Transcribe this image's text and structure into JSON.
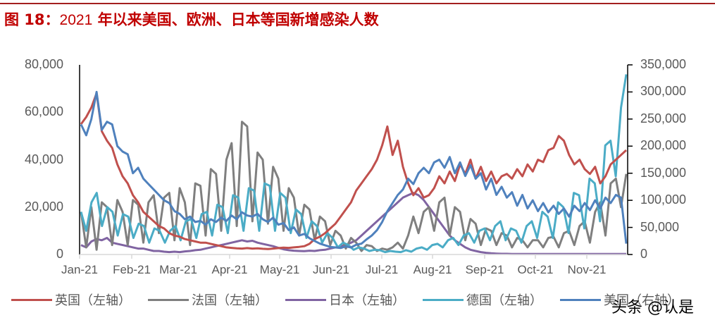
{
  "header": {
    "figure_no": "图 18：",
    "title_num": "2021",
    "title_text": " 年以来美国、欧洲、日本等国新增感染人数"
  },
  "watermark": "头条 @认是",
  "colors": {
    "uk": "#c0504d",
    "france": "#7f7f7f",
    "japan": "#8064a2",
    "germany": "#4bacc6",
    "us": "#4f81bd",
    "title": "#c00000",
    "axis_text": "#595959"
  },
  "chart_data": {
    "type": "line",
    "title": "图 18：2021 年以来美国、欧洲、日本等国新增感染人数",
    "xlabel": "",
    "ylabel_left": "",
    "ylabel_right": "",
    "x_ticks": [
      "Jan-21",
      "Feb-21",
      "Mar-21",
      "Apr-21",
      "May-21",
      "Jun-21",
      "Jul-21",
      "Aug-21",
      "Sep-21",
      "Oct-21",
      "Nov-21"
    ],
    "y_left_ticks": [
      "0",
      "20,000",
      "40,000",
      "60,000",
      "80,000"
    ],
    "y_right_ticks": [
      "0",
      "50,000",
      "100,000",
      "150,000",
      "200,000",
      "250,000",
      "300,000",
      "350,000"
    ],
    "ylim_left": [
      0,
      80000
    ],
    "ylim_right": [
      0,
      350000
    ],
    "grid": false,
    "legend_position": "bottom",
    "x_step_days": 3.4,
    "series": [
      {
        "key": "uk",
        "name": "英国（左轴）",
        "axis": "left",
        "values": [
          55000,
          58000,
          62000,
          68000,
          52000,
          48000,
          45000,
          38000,
          33000,
          30000,
          25000,
          22000,
          18000,
          16000,
          14000,
          12000,
          11000,
          9000,
          8000,
          7500,
          6500,
          6000,
          5500,
          5000,
          5000,
          4500,
          4000,
          3500,
          3000,
          2800,
          2600,
          2500,
          2700,
          2500,
          2600,
          2400,
          2300,
          2500,
          2700,
          2900,
          2800,
          3000,
          3200,
          3500,
          4500,
          6500,
          7500,
          9000,
          11000,
          13000,
          16000,
          19000,
          22000,
          27000,
          30000,
          33000,
          36000,
          40000,
          46000,
          54000,
          42000,
          48000,
          37000,
          30000,
          25000,
          28000,
          24000,
          25000,
          28000,
          33000,
          30000,
          35000,
          31000,
          38000,
          34000,
          40000,
          32000,
          37000,
          31000,
          35000,
          30000,
          33000,
          34000,
          32000,
          36000,
          33000,
          38000,
          35000,
          40000,
          39000,
          44000,
          45000,
          50000,
          48000,
          42000,
          38000,
          40000,
          36000,
          34000,
          37000,
          30000,
          33000,
          38000,
          40000,
          42000,
          44000
        ]
      },
      {
        "key": "france",
        "name": "法国（左轴）",
        "axis": "left",
        "values": [
          18000,
          3000,
          20000,
          2000,
          22000,
          20000,
          4000,
          23000,
          18000,
          4000,
          23000,
          21000,
          5000,
          22000,
          25000,
          9000,
          24000,
          26000,
          6000,
          28000,
          22000,
          4000,
          30000,
          29000,
          8000,
          36000,
          34000,
          10000,
          40000,
          47000,
          12000,
          56000,
          54000,
          14000,
          43000,
          40000,
          13000,
          37000,
          32000,
          10000,
          28000,
          24000,
          8000,
          21000,
          19000,
          6000,
          16000,
          14000,
          4000,
          10000,
          8000,
          2500,
          7000,
          5000,
          1500,
          4000,
          3500,
          1500,
          2500,
          2000,
          3000,
          5000,
          2500,
          8000,
          16000,
          9000,
          18000,
          20000,
          10000,
          22000,
          24000,
          8000,
          20000,
          18000,
          6000,
          15000,
          13000,
          4000,
          11000,
          10000,
          4000,
          9000,
          8000,
          3000,
          7000,
          6000,
          3000,
          6000,
          6000,
          3000,
          7000,
          7500,
          3000,
          9000,
          10000,
          4000,
          12000,
          14000,
          5000,
          18000,
          22000,
          8000,
          30000,
          32000,
          20000,
          34000
        ]
      },
      {
        "key": "japan",
        "name": "日本（左轴）",
        "axis": "left",
        "values": [
          4000,
          3000,
          5500,
          6500,
          6000,
          7000,
          5000,
          4500,
          4000,
          3500,
          3000,
          2500,
          2500,
          2000,
          1500,
          1500,
          1200,
          1000,
          1200,
          1000,
          1300,
          1500,
          1800,
          2000,
          2500,
          3000,
          3500,
          4000,
          4500,
          5000,
          5500,
          6000,
          5500,
          5800,
          5000,
          4500,
          4000,
          3500,
          2800,
          2200,
          1800,
          1600,
          1500,
          1400,
          1600,
          1500,
          1800,
          2000,
          2500,
          3000,
          3500,
          4000,
          5000,
          6000,
          8000,
          10000,
          12000,
          14000,
          16000,
          18000,
          20000,
          22000,
          24000,
          25000,
          26000,
          25000,
          23000,
          20000,
          17000,
          14000,
          11000,
          8000,
          6000,
          4500,
          3000,
          2000,
          1500,
          1000,
          700,
          500,
          400,
          300,
          300,
          250,
          250,
          200,
          200,
          200,
          200,
          200,
          200,
          200,
          200,
          200,
          200,
          200,
          200,
          200,
          200,
          200,
          200,
          200,
          200,
          200,
          200,
          200
        ]
      },
      {
        "key": "germany",
        "name": "德国（左轴）",
        "axis": "left",
        "values": [
          18000,
          10000,
          22000,
          26000,
          12000,
          20000,
          18000,
          8000,
          17000,
          16000,
          7000,
          13000,
          12000,
          5000,
          11000,
          10000,
          5000,
          10000,
          12000,
          6000,
          14000,
          15000,
          7000,
          17000,
          18000,
          8000,
          21000,
          20000,
          9000,
          25000,
          24000,
          10000,
          28000,
          27000,
          10000,
          30000,
          29000,
          10000,
          26000,
          24000,
          9000,
          19000,
          17000,
          7000,
          14000,
          12000,
          5000,
          9000,
          7000,
          3000,
          5000,
          4000,
          2000,
          3000,
          2500,
          1500,
          2000,
          1800,
          1000,
          1500,
          1200,
          1000,
          1800,
          1200,
          2500,
          3000,
          2000,
          4000,
          4500,
          3000,
          6000,
          7000,
          4000,
          8000,
          9000,
          5000,
          10000,
          11000,
          6000,
          12000,
          14000,
          6000,
          11000,
          10000,
          5000,
          12000,
          14000,
          7000,
          18000,
          16000,
          7000,
          22000,
          20000,
          9000,
          26000,
          25000,
          11000,
          32000,
          30000,
          14000,
          46000,
          48000,
          33000,
          62000,
          76000
        ]
      },
      {
        "key": "us",
        "name": "美国（右轴）",
        "axis": "right",
        "values": [
          240000,
          220000,
          250000,
          300000,
          230000,
          245000,
          240000,
          200000,
          190000,
          185000,
          150000,
          160000,
          140000,
          130000,
          120000,
          110000,
          100000,
          95000,
          80000,
          75000,
          65000,
          70000,
          60000,
          62000,
          55000,
          65000,
          60000,
          68000,
          62000,
          72000,
          65000,
          78000,
          72000,
          70000,
          75000,
          65000,
          60000,
          68000,
          55000,
          58000,
          45000,
          50000,
          35000,
          38000,
          30000,
          25000,
          20000,
          17000,
          14000,
          13000,
          12000,
          15000,
          13000,
          18000,
          20000,
          28000,
          35000,
          45000,
          60000,
          80000,
          95000,
          110000,
          120000,
          140000,
          130000,
          150000,
          160000,
          150000,
          170000,
          175000,
          160000,
          180000,
          150000,
          170000,
          145000,
          165000,
          140000,
          150000,
          120000,
          140000,
          110000,
          125000,
          105000,
          115000,
          90000,
          110000,
          85000,
          100000,
          80000,
          95000,
          78000,
          90000,
          75000,
          85000,
          70000,
          90000,
          80000,
          95000,
          82000,
          100000,
          85000,
          105000,
          95000,
          110000,
          105000,
          20000
        ]
      }
    ]
  },
  "legend": [
    {
      "key": "uk",
      "label": "英国（左轴）"
    },
    {
      "key": "france",
      "label": "法国（左轴）"
    },
    {
      "key": "japan",
      "label": "日本（左轴）"
    },
    {
      "key": "germany",
      "label": "德国（左轴）"
    },
    {
      "key": "us",
      "label": "美国（右轴）"
    }
  ]
}
